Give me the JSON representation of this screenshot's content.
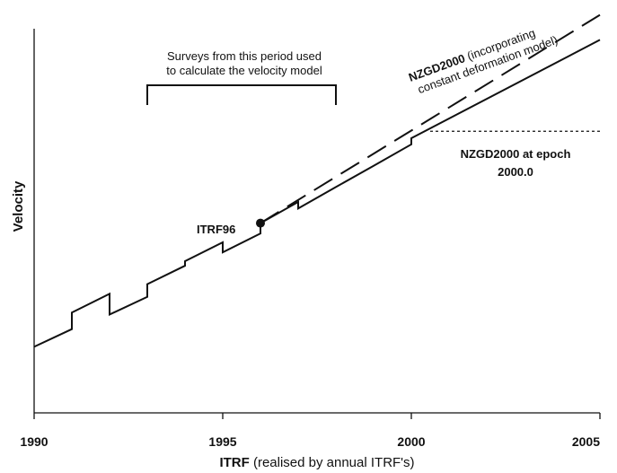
{
  "chart_data": {
    "type": "line",
    "xlabel": {
      "bold": "ITRF",
      "rest": " (realised by annual ITRF's)"
    },
    "ylabel": "Velocity",
    "x_ticks": [
      "1990",
      "1995",
      "2000",
      "2005"
    ],
    "xlim": [
      1990,
      2005
    ],
    "ylim": [
      0,
      100
    ],
    "annotations": {
      "survey_period_line1": "Surveys from this period used",
      "survey_period_line2": "to calculate the velocity model",
      "survey_period_range": [
        1993,
        1998
      ],
      "itrf96_label": "ITRF96",
      "itrf96_point": {
        "x": 1996,
        "y": 49.4
      },
      "nzgd2000_deformation_bold": "NZGD2000",
      "nzgd2000_deformation_rest_line1": " (incorporating",
      "nzgd2000_deformation_line2": "constant deformation model)",
      "nzgd2000_epoch_line1": "NZGD2000 at epoch",
      "nzgd2000_epoch_line2": "2000.0",
      "nzgd2000_epoch_level": 73.3
    },
    "series": [
      {
        "style": "solid",
        "points": [
          [
            1990,
            17.2
          ],
          [
            1991,
            21.8
          ],
          [
            1991,
            26.1
          ],
          [
            1992,
            31.0
          ],
          [
            1992,
            25.6
          ],
          [
            1993,
            30.2
          ],
          [
            1993,
            33.5
          ],
          [
            1994,
            38.3
          ],
          [
            1994,
            39.5
          ],
          [
            1995,
            44.4
          ],
          [
            1995,
            41.8
          ],
          [
            1996,
            46.7
          ],
          [
            1996,
            49.4
          ],
          [
            1997,
            54.9
          ],
          [
            1997,
            53.2
          ],
          [
            1998,
            58.8
          ],
          [
            1999,
            64.3
          ],
          [
            2000,
            69.9
          ],
          [
            2000,
            71.5
          ],
          [
            2005,
            97.1
          ]
        ]
      },
      {
        "style": "dashed",
        "points": [
          [
            1996,
            49.4
          ],
          [
            2005,
            103.6
          ]
        ]
      },
      {
        "style": "dotted",
        "points": [
          [
            2000.5,
            73.3
          ],
          [
            2005,
            73.3
          ]
        ]
      }
    ]
  }
}
